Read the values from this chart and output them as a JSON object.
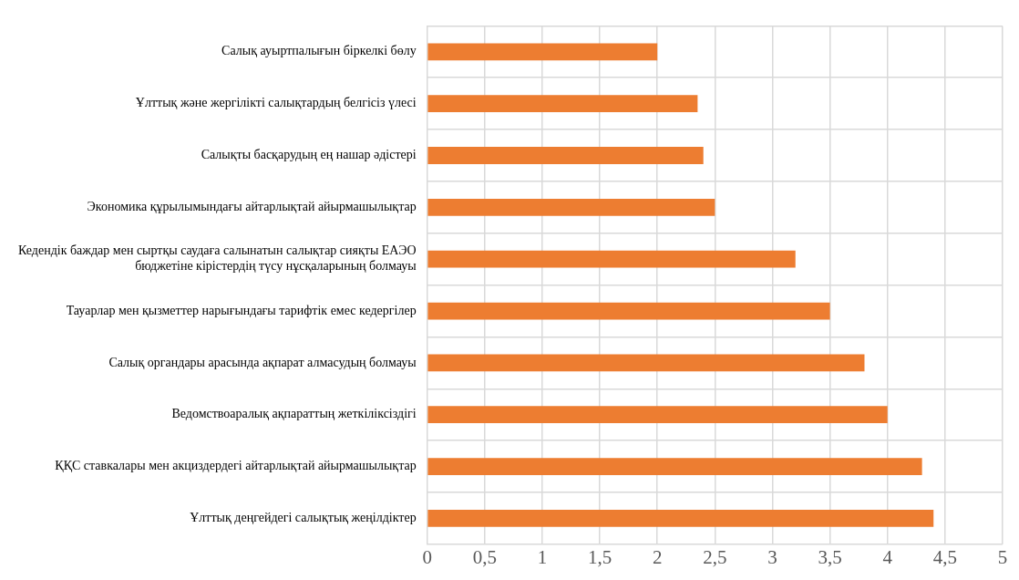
{
  "chart_data": {
    "type": "bar",
    "orientation": "horizontal",
    "categories": [
      "Салық ауыртпалығын біркелкі бөлу",
      "Ұлттық және жергілікті салықтардың белгісіз үлесі",
      "Салықты басқарудың ең нашар әдістері",
      "Экономика құрылымындағы айтарлықтай айырмашылықтар",
      "Кедендік баждар мен сыртқы саудаға салынатын салықтар сияқты ЕАЭО бюджетіне кірістердің түсу нұсқаларының болмауы",
      "Тауарлар мен қызметтер нарығындағы тарифтік емес кедергілер",
      "Салық органдары арасында ақпарат алмасудың болмауы",
      "Ведомствоаралық ақпараттың жеткіліксіздігі",
      "ҚҚС ставкалары мен акциздердегі айтарлықтай айырмашылықтар",
      "Ұлттық деңгейдегі салықтық жеңілдіктер"
    ],
    "values": [
      2,
      2.35,
      2.4,
      2.5,
      3.2,
      3.5,
      3.8,
      4,
      4.3,
      4.4
    ],
    "color": "#ed7d31",
    "xlim": [
      0,
      5
    ],
    "xticks": [
      0,
      {
        "value": 0.5,
        "label": "0,5"
      },
      1,
      {
        "value": 1.5,
        "label": "1,5"
      },
      2,
      {
        "value": 2.5,
        "label": "2,5"
      },
      3,
      {
        "value": 3.5,
        "label": "3,5"
      },
      4,
      {
        "value": 4.5,
        "label": "4,5"
      },
      5
    ],
    "grid": true,
    "legend": false
  }
}
